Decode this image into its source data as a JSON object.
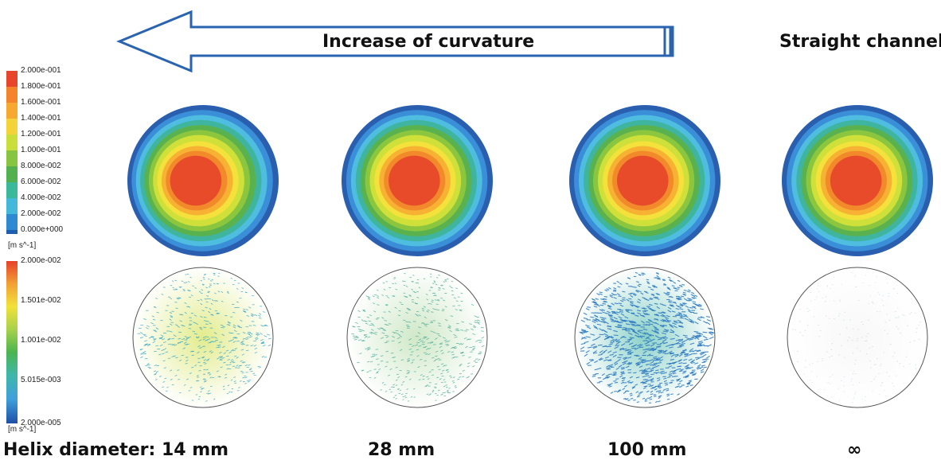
{
  "arrow": {
    "label": "Increase of curvature",
    "color": "#2a63b0"
  },
  "straight_label": "Straight channel",
  "colorbar_velocity": {
    "labels": [
      "2.000e-001",
      "1.800e-001",
      "1.600e-001",
      "1.400e-001",
      "1.200e-001",
      "1.000e-001",
      "8.000e-002",
      "6.000e-002",
      "4.000e-002",
      "2.000e-002",
      "0.000e+000"
    ],
    "unit": "[m s^-1]",
    "colors": [
      "#e8462a",
      "#f4832c",
      "#f6a831",
      "#f2d43a",
      "#c9dd3b",
      "#87c440",
      "#52b04e",
      "#3ab89a",
      "#42b8da",
      "#2d8ad0",
      "#1d5fae"
    ]
  },
  "colorbar_secondary": {
    "labels": [
      "2.000e-002",
      "1.501e-002",
      "1.001e-002",
      "5.015e-003",
      "2.000e-005"
    ],
    "unit": "[m s^-1]"
  },
  "columns": [
    {
      "diameter_label": "Helix diameter: 14 mm"
    },
    {
      "diameter_label": "28 mm"
    },
    {
      "diameter_label": "100 mm"
    },
    {
      "diameter_label": "∞"
    }
  ],
  "ring_colors": [
    "#2a5fb0",
    "#3a8fd8",
    "#4fbde0",
    "#3fb5a0",
    "#5ab24e",
    "#8cc63f",
    "#cfe03a",
    "#f4e13b",
    "#f7b133",
    "#f28a2c",
    "#e84b2a"
  ],
  "secondary_fill_colors": [
    "#e2ec8c",
    "#cfe8c7",
    "#8cd1c8",
    "#f8f8f8"
  ],
  "secondary_arrow_colors": [
    "#3aa7c8",
    "#4fae9a",
    "#2a78c0",
    "#a0c8d8"
  ]
}
